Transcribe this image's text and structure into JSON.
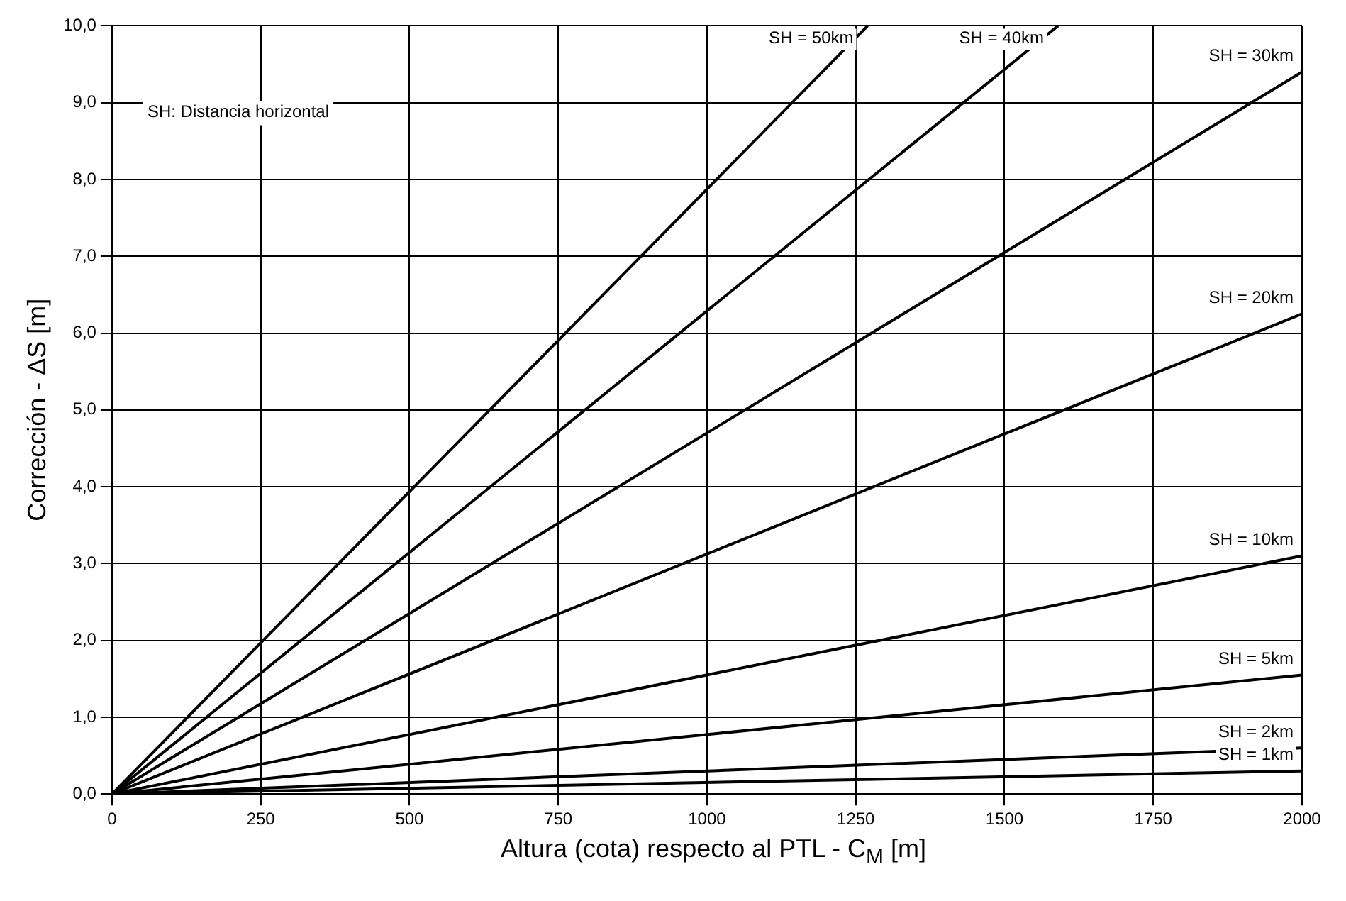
{
  "chart_data": {
    "type": "line",
    "xlabel": "Altura (cota) respecto al PTL - C$_{M}$ [m]",
    "ylabel": "Corrección - ΔS [m]",
    "annotations": [
      "SH: Distancia horizontal"
    ],
    "xlim": [
      0,
      2000
    ],
    "xticks": [
      0,
      250,
      500,
      750,
      1000,
      1250,
      1500,
      1750,
      2000
    ],
    "ylim": [
      0,
      10
    ],
    "yticks": [
      {
        "value": 0,
        "label": "0,0"
      },
      {
        "value": 1,
        "label": "1,0"
      },
      {
        "value": 2,
        "label": "2,0"
      },
      {
        "value": 3,
        "label": "3,0"
      },
      {
        "value": 4,
        "label": "4,0"
      },
      {
        "value": 5,
        "label": "5,0"
      },
      {
        "value": 6,
        "label": "6,0"
      },
      {
        "value": 7,
        "label": "7,0"
      },
      {
        "value": 8,
        "label": "8,0"
      },
      {
        "value": 9,
        "label": "9,0"
      },
      {
        "value": 10,
        "label": "10,0"
      }
    ],
    "grid": true,
    "legend": false,
    "marker": "none",
    "line_style": "solid",
    "series": [
      {
        "name": "SH = 50km",
        "color": "#000000",
        "x": [
          0,
          1270
        ],
        "values": [
          0,
          10
        ]
      },
      {
        "name": "SH = 40km",
        "color": "#000000",
        "x": [
          0,
          1590
        ],
        "values": [
          0,
          10
        ]
      },
      {
        "name": "SH = 30km",
        "color": "#000000",
        "x": [
          0,
          2000
        ],
        "values": [
          0,
          9.4
        ]
      },
      {
        "name": "SH = 20km",
        "color": "#000000",
        "x": [
          0,
          2000
        ],
        "values": [
          0,
          6.25
        ]
      },
      {
        "name": "SH = 10km",
        "color": "#000000",
        "x": [
          0,
          2000
        ],
        "values": [
          0,
          3.1
        ]
      },
      {
        "name": "SH = 5km",
        "color": "#000000",
        "x": [
          0,
          2000
        ],
        "values": [
          0,
          1.55
        ]
      },
      {
        "name": "SH = 2km",
        "color": "#000000",
        "x": [
          0,
          2000
        ],
        "values": [
          0,
          0.6
        ]
      },
      {
        "name": "SH = 1km",
        "color": "#000000",
        "x": [
          0,
          2000
        ],
        "values": [
          0,
          0.3
        ]
      }
    ]
  }
}
